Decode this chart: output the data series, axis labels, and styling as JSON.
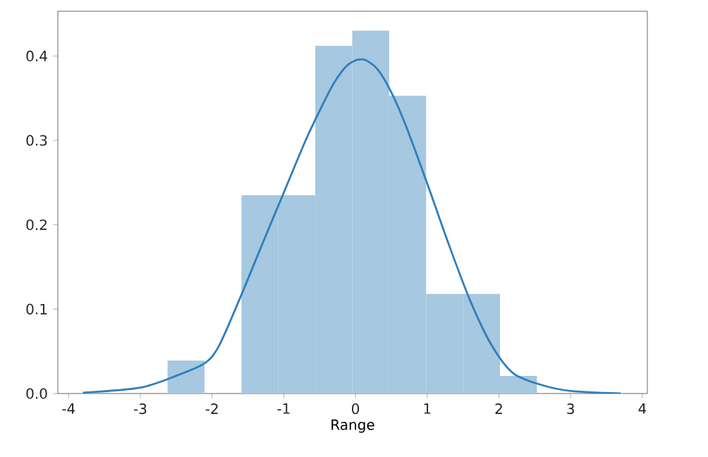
{
  "chart_data": {
    "type": "histogram",
    "xlabel": "Range",
    "bins": [
      -2.62,
      -2.105,
      -1.59,
      -1.075,
      -0.56,
      -0.045,
      0.47,
      0.985,
      1.5,
      2.015,
      2.53
    ],
    "values": [
      0.039,
      0,
      0.235,
      0.235,
      0.412,
      0.43,
      0.353,
      0.118,
      0.118,
      0.021
    ],
    "color": "#a6c8e0",
    "series": [
      {
        "type": "line",
        "color": "#2f7ebc",
        "x": [
          -3.8,
          -3.0,
          -2.5,
          -2.1,
          -1.9,
          -1.6,
          -1.3,
          -1.0,
          -0.7,
          -0.5,
          -0.3,
          -0.1,
          0.1,
          0.3,
          0.5,
          0.7,
          1.0,
          1.3,
          1.6,
          1.9,
          2.2,
          2.6,
          3.0,
          3.7
        ],
        "values": [
          0.001,
          0.007,
          0.021,
          0.036,
          0.057,
          0.115,
          0.177,
          0.238,
          0.299,
          0.335,
          0.368,
          0.39,
          0.396,
          0.385,
          0.357,
          0.318,
          0.249,
          0.177,
          0.11,
          0.057,
          0.024,
          0.01,
          0.003,
          0.0
        ]
      }
    ],
    "xlim": [
      -4.15,
      4.07
    ],
    "ylim": [
      0,
      0.453
    ],
    "xticks": [
      -4,
      -3,
      -2,
      -1,
      0,
      1,
      2,
      3,
      4
    ],
    "yticks": [
      {
        "value": 0,
        "label": "0.0"
      },
      {
        "value": 0.1,
        "label": "0.1"
      },
      {
        "value": 0.2,
        "label": "0.2"
      },
      {
        "value": 0.3,
        "label": "0.3"
      },
      {
        "value": 0.4,
        "label": "0.4"
      }
    ],
    "grid": false
  }
}
